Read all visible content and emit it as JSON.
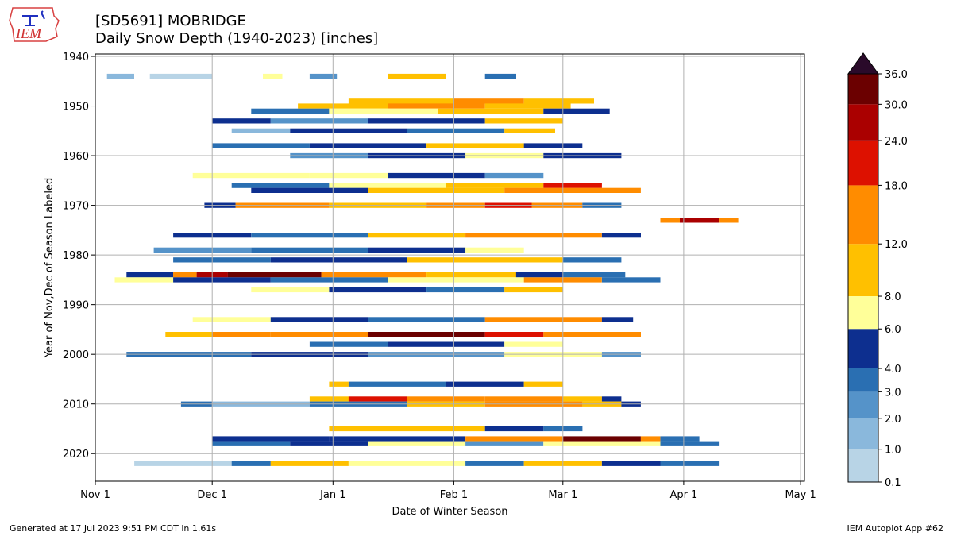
{
  "header": {
    "title_line1": "[SD5691] MOBRIDGE",
    "title_line2": "Daily Snow Depth (1940-2023) [inches]",
    "logo_text": "IEM"
  },
  "footer": {
    "left": "Generated at 17 Jul 2023 9:51 PM CDT in 1.61s",
    "right": "IEM Autoplot App #62"
  },
  "chart_data": {
    "type": "heatmap",
    "xlabel": "Date of Winter Season",
    "ylabel": "Year of Nov,Dec of Season Labeled",
    "x_ticks": [
      "Nov 1",
      "Dec 1",
      "Jan 1",
      "Feb 1",
      "Mar 1",
      "Apr 1",
      "May 1"
    ],
    "x_tick_days": [
      0,
      30,
      61,
      92,
      120,
      151,
      181
    ],
    "y_ticks": [
      1940,
      1950,
      1960,
      1970,
      1980,
      1990,
      2000,
      2010,
      2020
    ],
    "ylim": [
      1940,
      2023
    ],
    "grid": true,
    "missing_color": "#ececec",
    "colorbar": {
      "levels": [
        0.1,
        1.0,
        2.0,
        3.0,
        4.0,
        6.0,
        8.0,
        12.0,
        18.0,
        24.0,
        30.0,
        36.0
      ],
      "tick_labels": [
        "0.1",
        "1.0",
        "2.0",
        "3.0",
        "4.0",
        "6.0",
        "8.0",
        "12.0",
        "18.0",
        "24.0",
        "30.0",
        "36.0"
      ],
      "colors": [
        "#b8d4e6",
        "#8ab8dc",
        "#5593c9",
        "#2a6fb2",
        "#0d2f8f",
        "#ffff99",
        "#ffc000",
        "#ff8c00",
        "#dd1100",
        "#aa0000",
        "#6b0000"
      ],
      "extend_color": "#2a0a2a"
    },
    "series": [
      {
        "year": 1944,
        "segments": [
          [
            3,
            10,
            1
          ],
          [
            14,
            30,
            0.5
          ],
          [
            43,
            48,
            7
          ],
          [
            55,
            62,
            2
          ],
          [
            75,
            90,
            9
          ],
          [
            100,
            108,
            3
          ]
        ]
      },
      {
        "year": 1949,
        "segments": [
          [
            65,
            92,
            10
          ],
          [
            92,
            110,
            14
          ],
          [
            110,
            128,
            9
          ]
        ]
      },
      {
        "year": 1950,
        "segments": [
          [
            52,
            75,
            9
          ],
          [
            75,
            100,
            12
          ],
          [
            100,
            122,
            8
          ]
        ]
      },
      {
        "year": 1951,
        "segments": [
          [
            40,
            60,
            3
          ],
          [
            60,
            88,
            6
          ],
          [
            88,
            115,
            10
          ],
          [
            115,
            132,
            4
          ]
        ]
      },
      {
        "year": 1953,
        "segments": [
          [
            30,
            45,
            4
          ],
          [
            45,
            70,
            2
          ],
          [
            70,
            100,
            5
          ],
          [
            100,
            120,
            9
          ]
        ]
      },
      {
        "year": 1955,
        "segments": [
          [
            35,
            50,
            1
          ],
          [
            50,
            80,
            4
          ],
          [
            80,
            105,
            3
          ],
          [
            105,
            118,
            8
          ]
        ]
      },
      {
        "year": 1958,
        "segments": [
          [
            30,
            55,
            3
          ],
          [
            55,
            85,
            4
          ],
          [
            85,
            110,
            9
          ],
          [
            110,
            125,
            4
          ]
        ]
      },
      {
        "year": 1960,
        "segments": [
          [
            50,
            70,
            2
          ],
          [
            70,
            95,
            4
          ],
          [
            95,
            115,
            6
          ],
          [
            115,
            135,
            5
          ]
        ]
      },
      {
        "year": 1964,
        "segments": [
          [
            25,
            55,
            6
          ],
          [
            55,
            75,
            7
          ],
          [
            75,
            100,
            4
          ],
          [
            100,
            115,
            2
          ]
        ]
      },
      {
        "year": 1966,
        "segments": [
          [
            35,
            60,
            3
          ],
          [
            60,
            90,
            6
          ],
          [
            90,
            115,
            9
          ],
          [
            115,
            130,
            21
          ]
        ]
      },
      {
        "year": 1967,
        "segments": [
          [
            40,
            70,
            4
          ],
          [
            70,
            105,
            9
          ],
          [
            105,
            140,
            14
          ]
        ]
      },
      {
        "year": 1970,
        "segments": [
          [
            28,
            36,
            4
          ],
          [
            36,
            60,
            15
          ],
          [
            60,
            85,
            10
          ],
          [
            85,
            100,
            13
          ],
          [
            100,
            112,
            20
          ],
          [
            112,
            125,
            14
          ],
          [
            125,
            135,
            3
          ]
        ]
      },
      {
        "year": 1973,
        "segments": [
          [
            145,
            150,
            14
          ],
          [
            150,
            160,
            24
          ],
          [
            160,
            165,
            13
          ]
        ]
      },
      {
        "year": 1976,
        "segments": [
          [
            20,
            40,
            4
          ],
          [
            40,
            70,
            3
          ],
          [
            70,
            95,
            9
          ],
          [
            95,
            130,
            13
          ],
          [
            130,
            140,
            5
          ]
        ]
      },
      {
        "year": 1979,
        "segments": [
          [
            15,
            40,
            2
          ],
          [
            40,
            70,
            3
          ],
          [
            70,
            95,
            4
          ],
          [
            95,
            110,
            6
          ]
        ]
      },
      {
        "year": 1981,
        "segments": [
          [
            20,
            45,
            3
          ],
          [
            45,
            80,
            4
          ],
          [
            80,
            120,
            8
          ],
          [
            120,
            135,
            3
          ]
        ]
      },
      {
        "year": 1984,
        "segments": [
          [
            8,
            20,
            4
          ],
          [
            20,
            26,
            14
          ],
          [
            26,
            34,
            24
          ],
          [
            34,
            58,
            32
          ],
          [
            58,
            85,
            16
          ],
          [
            85,
            108,
            11
          ],
          [
            108,
            120,
            5
          ],
          [
            120,
            136,
            3
          ]
        ]
      },
      {
        "year": 1985,
        "segments": [
          [
            5,
            20,
            6
          ],
          [
            20,
            45,
            4
          ],
          [
            45,
            75,
            3
          ],
          [
            75,
            110,
            7
          ],
          [
            110,
            130,
            14
          ],
          [
            130,
            145,
            3
          ]
        ]
      },
      {
        "year": 1987,
        "segments": [
          [
            40,
            60,
            7
          ],
          [
            60,
            85,
            5
          ],
          [
            85,
            105,
            3
          ],
          [
            105,
            120,
            8
          ]
        ]
      },
      {
        "year": 1993,
        "segments": [
          [
            25,
            45,
            7
          ],
          [
            45,
            70,
            4
          ],
          [
            70,
            100,
            3
          ],
          [
            100,
            130,
            13
          ],
          [
            130,
            138,
            4
          ]
        ]
      },
      {
        "year": 1996,
        "segments": [
          [
            18,
            30,
            8
          ],
          [
            30,
            45,
            12
          ],
          [
            45,
            70,
            14
          ],
          [
            70,
            100,
            33
          ],
          [
            100,
            115,
            20
          ],
          [
            115,
            140,
            13
          ]
        ]
      },
      {
        "year": 1998,
        "segments": [
          [
            55,
            75,
            3
          ],
          [
            75,
            105,
            4
          ],
          [
            105,
            120,
            6
          ]
        ]
      },
      {
        "year": 2000,
        "segments": [
          [
            8,
            40,
            3
          ],
          [
            40,
            70,
            4
          ],
          [
            70,
            105,
            2
          ],
          [
            105,
            130,
            7
          ],
          [
            130,
            140,
            2
          ]
        ]
      },
      {
        "year": 2006,
        "segments": [
          [
            60,
            65,
            10
          ],
          [
            65,
            90,
            3
          ],
          [
            90,
            110,
            4
          ],
          [
            110,
            120,
            9
          ]
        ]
      },
      {
        "year": 2009,
        "segments": [
          [
            55,
            65,
            8
          ],
          [
            65,
            80,
            21
          ],
          [
            80,
            100,
            15
          ],
          [
            100,
            120,
            14
          ],
          [
            120,
            130,
            8
          ],
          [
            130,
            135,
            4
          ]
        ]
      },
      {
        "year": 2010,
        "segments": [
          [
            22,
            30,
            3
          ],
          [
            30,
            55,
            1
          ],
          [
            55,
            80,
            3
          ],
          [
            80,
            100,
            10
          ],
          [
            100,
            125,
            13
          ],
          [
            125,
            135,
            11
          ],
          [
            135,
            140,
            5
          ]
        ]
      },
      {
        "year": 2015,
        "segments": [
          [
            60,
            100,
            9
          ],
          [
            100,
            115,
            5
          ],
          [
            115,
            125,
            3
          ]
        ]
      },
      {
        "year": 2017,
        "segments": [
          [
            30,
            60,
            5
          ],
          [
            60,
            95,
            4
          ],
          [
            95,
            120,
            15
          ],
          [
            120,
            140,
            33
          ],
          [
            140,
            145,
            17
          ],
          [
            145,
            155,
            3
          ]
        ]
      },
      {
        "year": 2018,
        "segments": [
          [
            30,
            50,
            3
          ],
          [
            50,
            70,
            4
          ],
          [
            70,
            95,
            7
          ],
          [
            95,
            115,
            2
          ],
          [
            115,
            145,
            6
          ],
          [
            145,
            160,
            3
          ]
        ]
      },
      {
        "year": 2022,
        "segments": [
          [
            10,
            35,
            0.5
          ],
          [
            35,
            45,
            3
          ],
          [
            45,
            65,
            10
          ],
          [
            65,
            95,
            6
          ],
          [
            95,
            110,
            3
          ],
          [
            110,
            130,
            8
          ],
          [
            130,
            145,
            4
          ],
          [
            145,
            160,
            3
          ]
        ]
      }
    ]
  }
}
